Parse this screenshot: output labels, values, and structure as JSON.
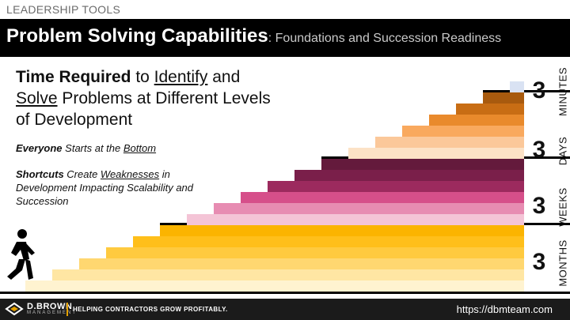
{
  "header": {
    "category": "LEADERSHIP TOOLS"
  },
  "title": {
    "main": "Problem Solving Capabilities",
    "subtitle": ": Foundations and Succession Readiness"
  },
  "heading": {
    "part1_bold": "Time Required",
    "part2": " to ",
    "part3_underline": "Identify",
    "part4": " and ",
    "part5_underline": "Solve",
    "part6": " Problems at Different Levels of Development"
  },
  "notes": {
    "note1_bold_italic": "Everyone",
    "note1_italic": " Starts at the ",
    "note1_underline": "Bottom",
    "note2_bold_italic": "Shortcuts",
    "note2_italic": " Create ",
    "note2_underline": "Weaknesses",
    "note2_rest": " in Development Impacting Scalability and Succession"
  },
  "levels": [
    {
      "number": "3",
      "unit": "MINUTES",
      "colors": [
        "#d9e2f3",
        "#c5d3ec",
        "#a9bde3",
        "#7a9bd3",
        "#4e75bf",
        "#3a64b4"
      ]
    },
    {
      "number": "3",
      "unit": "DAYS",
      "colors": [
        "#fce2c6",
        "#fbc89a",
        "#f9a95e",
        "#e98a2c",
        "#c86d14",
        "#a85a0e"
      ]
    },
    {
      "number": "3",
      "unit": "WEEKS",
      "colors": [
        "#f4c4d6",
        "#e78cb2",
        "#d64f8a",
        "#9c2a5e",
        "#7a1f4a",
        "#641a3c"
      ]
    },
    {
      "number": "3",
      "unit": "MONTHS",
      "colors": [
        "#fff3d0",
        "#ffe6a3",
        "#ffd770",
        "#ffca3f",
        "#ffbf1a",
        "#fbb400"
      ]
    }
  ],
  "footer": {
    "brand": "D.BROWN",
    "brand_sub": "MANAGEMENT",
    "tagline": "HELPING CONTRACTORS GROW PROFITABLY.",
    "url": "https://dbmteam.com"
  }
}
